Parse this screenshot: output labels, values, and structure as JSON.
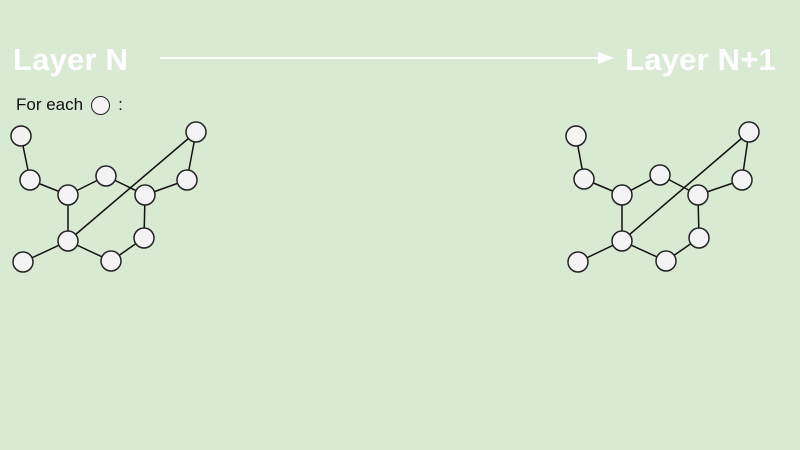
{
  "titles": {
    "left": "Layer N",
    "right": "Layer N+1"
  },
  "caption": {
    "prefix": "For each",
    "suffix": ":"
  },
  "colors": {
    "background": "#d9ead3",
    "title": "#ffffff",
    "node_fill": "#f3f3f3",
    "node_stroke": "#222222",
    "edge": "#111111",
    "arrow": "#ffffff"
  },
  "graph": {
    "nodes": [
      "n1",
      "n2",
      "n3",
      "n4",
      "n5",
      "n6",
      "n7",
      "n8",
      "n9",
      "n10",
      "n11"
    ],
    "edges": [
      [
        "n1",
        "n2"
      ],
      [
        "n2",
        "n3"
      ],
      [
        "n3",
        "n4"
      ],
      [
        "n4",
        "n5"
      ],
      [
        "n5",
        "n6"
      ],
      [
        "n6",
        "n7"
      ],
      [
        "n7",
        "n8"
      ],
      [
        "n8",
        "n3"
      ],
      [
        "n8",
        "n9"
      ],
      [
        "n5",
        "n10"
      ],
      [
        "n10",
        "n11"
      ]
    ]
  }
}
